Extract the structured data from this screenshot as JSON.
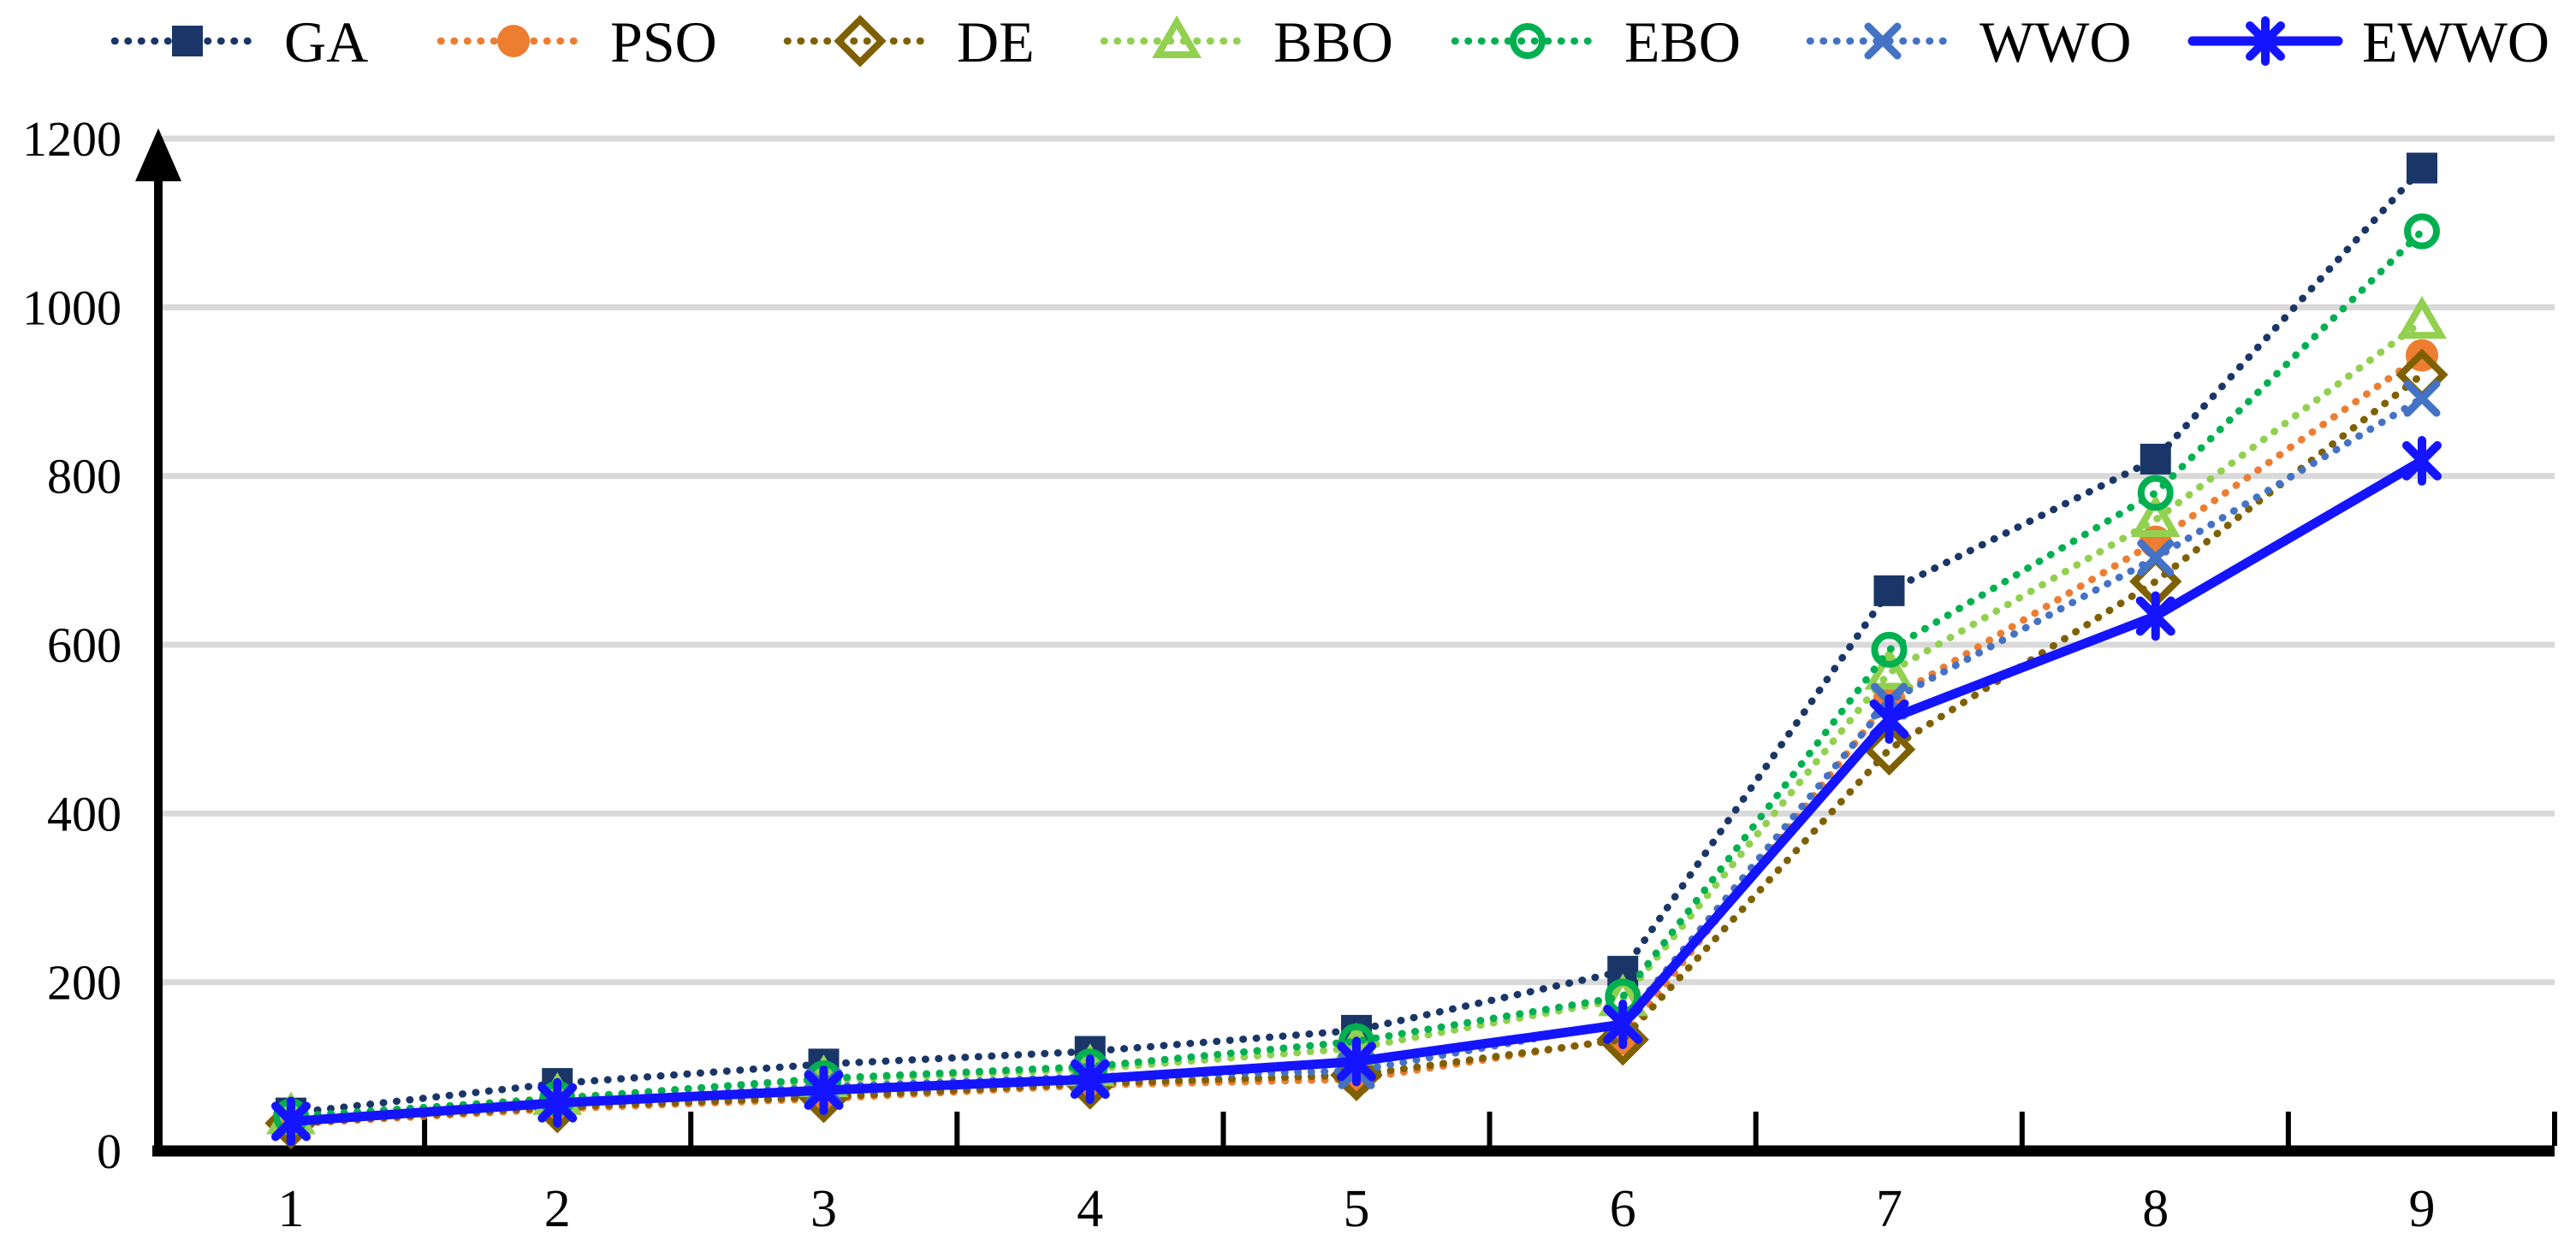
{
  "figure": {
    "title": "",
    "description": "Line chart comparing seven optimization algorithms over instances 1-9"
  },
  "colors": {
    "background": "#FFFFFF",
    "gridline": "#D9D9D9",
    "axis": "#000000",
    "text": "#000000"
  },
  "chart_data": {
    "type": "line",
    "title": "",
    "xlabel": "",
    "ylabel": "",
    "grid": "horizontal",
    "legend_position": "top",
    "categories": [
      "1",
      "2",
      "3",
      "4",
      "5",
      "6",
      "7",
      "8",
      "9"
    ],
    "y_axis": {
      "min": 0,
      "max": 1200,
      "step": 200,
      "tick_labels": [
        "0",
        "200",
        "400",
        "600",
        "800",
        "1000",
        "1200"
      ],
      "arrow": true
    },
    "series": [
      {
        "name": "GA",
        "color": "#1A3668",
        "marker": "square-filled",
        "line": "dotted",
        "values": [
          45,
          80,
          103,
          118,
          143,
          213,
          664,
          820,
          1165
        ]
      },
      {
        "name": "PSO",
        "color": "#ED7D31",
        "marker": "circle-filled",
        "line": "dotted",
        "values": [
          32,
          50,
          62,
          78,
          85,
          133,
          535,
          722,
          943
        ]
      },
      {
        "name": "DE",
        "color": "#7F6000",
        "marker": "diamond-open",
        "line": "dotted",
        "values": [
          33,
          52,
          64,
          80,
          90,
          132,
          476,
          675,
          920
        ]
      },
      {
        "name": "BBO",
        "color": "#92D050",
        "marker": "triangle-open",
        "line": "dotted",
        "values": [
          40,
          63,
          84,
          97,
          122,
          180,
          567,
          748,
          983
        ]
      },
      {
        "name": "EBO",
        "color": "#00B050",
        "marker": "circle-open",
        "line": "dotted",
        "values": [
          41,
          62,
          86,
          100,
          130,
          183,
          594,
          780,
          1090
        ]
      },
      {
        "name": "WWO",
        "color": "#4472C4",
        "marker": "x",
        "line": "dotted",
        "values": [
          36,
          58,
          76,
          88,
          95,
          152,
          533,
          703,
          892
        ]
      },
      {
        "name": "EWWO",
        "color": "#1414FF",
        "marker": "asterisk",
        "line": "solid",
        "values": [
          35,
          57,
          72,
          85,
          106,
          150,
          512,
          634,
          818
        ]
      }
    ]
  }
}
